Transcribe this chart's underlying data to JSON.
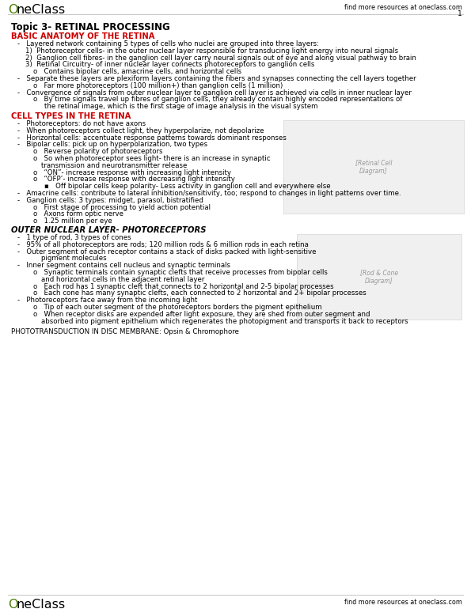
{
  "page_num": "1",
  "header_right": "find more resources at oneclass.com",
  "footer_right": "find more resources at oneclass.com",
  "title": "Topic 3- RETINAL PROCESSING",
  "section1_heading": "BASIC ANATOMY OF THE RETINA",
  "section1_color": "#cc0000",
  "section2_heading": "CELL TYPES IN THE RETINA",
  "section2_color": "#cc0000",
  "section3_heading": "OUTER NUCLEAR LAYER- PHOTORECEPTORS",
  "section4_heading": "PHOTOTRANSDUCTION IN DISC MEMBRANE: Opsin & Chromophore",
  "bg_color": "#ffffff",
  "text_color": "#000000",
  "logo_green": "#4a7c00",
  "dpi": 100,
  "fig_w": 5.95,
  "fig_h": 7.7
}
